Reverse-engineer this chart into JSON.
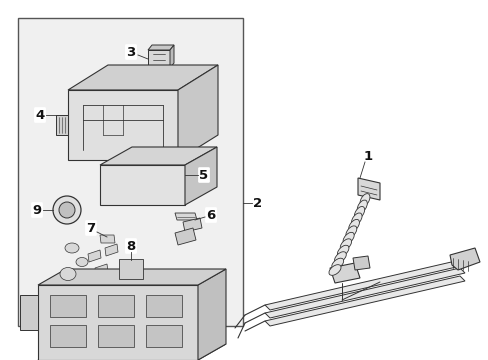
{
  "bg_color": "#ffffff",
  "line_color": "#333333",
  "box_fill": "#e8e8e8",
  "fig_width": 4.89,
  "fig_height": 3.6,
  "dpi": 100
}
